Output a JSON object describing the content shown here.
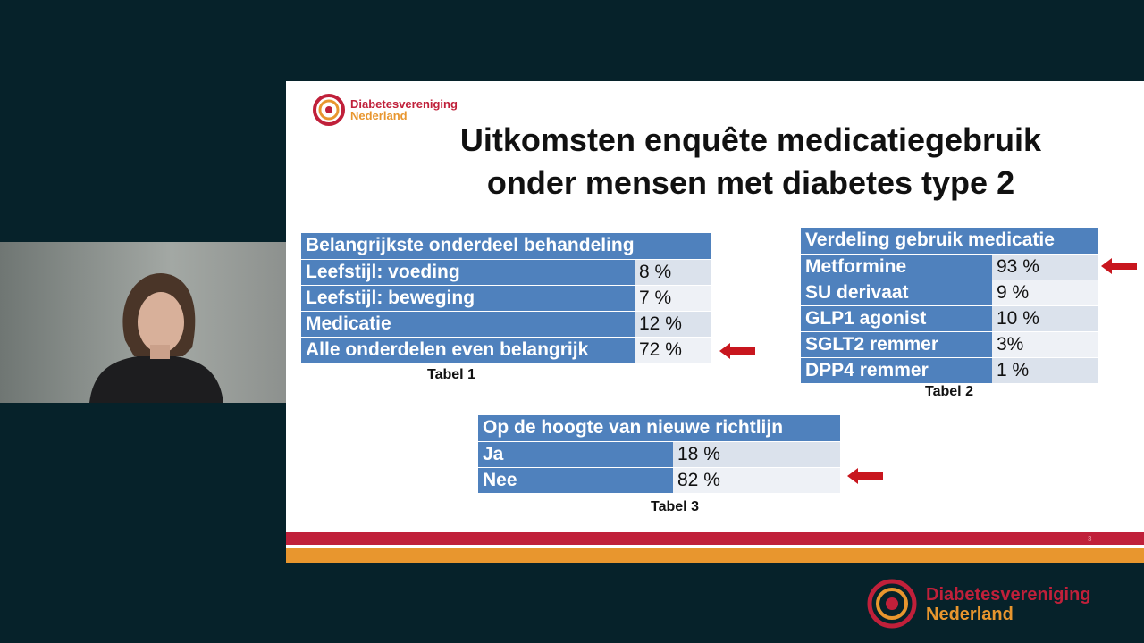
{
  "slide": {
    "logo": {
      "line1": "Diabetesvereniging",
      "line2": "Nederland"
    },
    "title": {
      "line1": "Uitkomsten enquête medicatiegebruik",
      "line2": "onder mensen met diabetes type 2"
    },
    "tables": [
      {
        "header": "Belangrijkste onderdeel behandeling",
        "rows": [
          [
            "Leefstijl: voeding",
            "8 %"
          ],
          [
            "Leefstijl: beweging",
            "7 %"
          ],
          [
            "Medicatie",
            "12 %"
          ],
          [
            "Alle onderdelen even belangrijk",
            "72 %"
          ]
        ],
        "caption": "Tabel 1"
      },
      {
        "header": "Verdeling gebruik medicatie",
        "rows": [
          [
            "Metformine",
            "93 %"
          ],
          [
            "SU derivaat",
            "9 %"
          ],
          [
            "GLP1 agonist",
            "10 %"
          ],
          [
            "SGLT2 remmer",
            "3%"
          ],
          [
            "DPP4 remmer",
            "1 %"
          ]
        ],
        "caption": "Tabel 2"
      },
      {
        "header": "Op de hoogte van nieuwe richtlijn",
        "rows": [
          [
            "Ja",
            "18 %"
          ],
          [
            "Nee",
            "82 %"
          ]
        ],
        "caption": "Tabel 3"
      }
    ],
    "page_number": "3"
  },
  "watermark": {
    "line1": "Diabetesvereniging",
    "line2": "Nederland"
  }
}
